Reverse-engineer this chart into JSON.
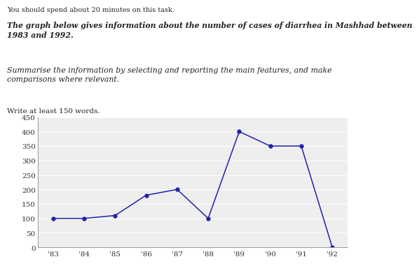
{
  "years": [
    "'83",
    "'84",
    "'85",
    "'86",
    "'87",
    "'88",
    "'89",
    "'90",
    "'91",
    "'92"
  ],
  "values": [
    100,
    100,
    110,
    180,
    200,
    100,
    400,
    350,
    350,
    0
  ],
  "line_color": "#2222aa",
  "marker": "o",
  "marker_size": 4,
  "ylim": [
    0,
    450
  ],
  "yticks": [
    0,
    50,
    100,
    150,
    200,
    250,
    300,
    350,
    400,
    450
  ],
  "title_line1": "You should spend about 20 minutes on this task.",
  "title_line2": "The graph below gives information about the number of cases of diarrhea in Mashhad between\n1983 and 1992.",
  "title_line3": "Summarise the information by selecting and reporting the main features, and make\ncomparisons where relevant.",
  "title_line4": "Write at least 150 words.",
  "bg_color": "#ffffff",
  "grid_color": "#cccccc",
  "text_color": "#222222"
}
